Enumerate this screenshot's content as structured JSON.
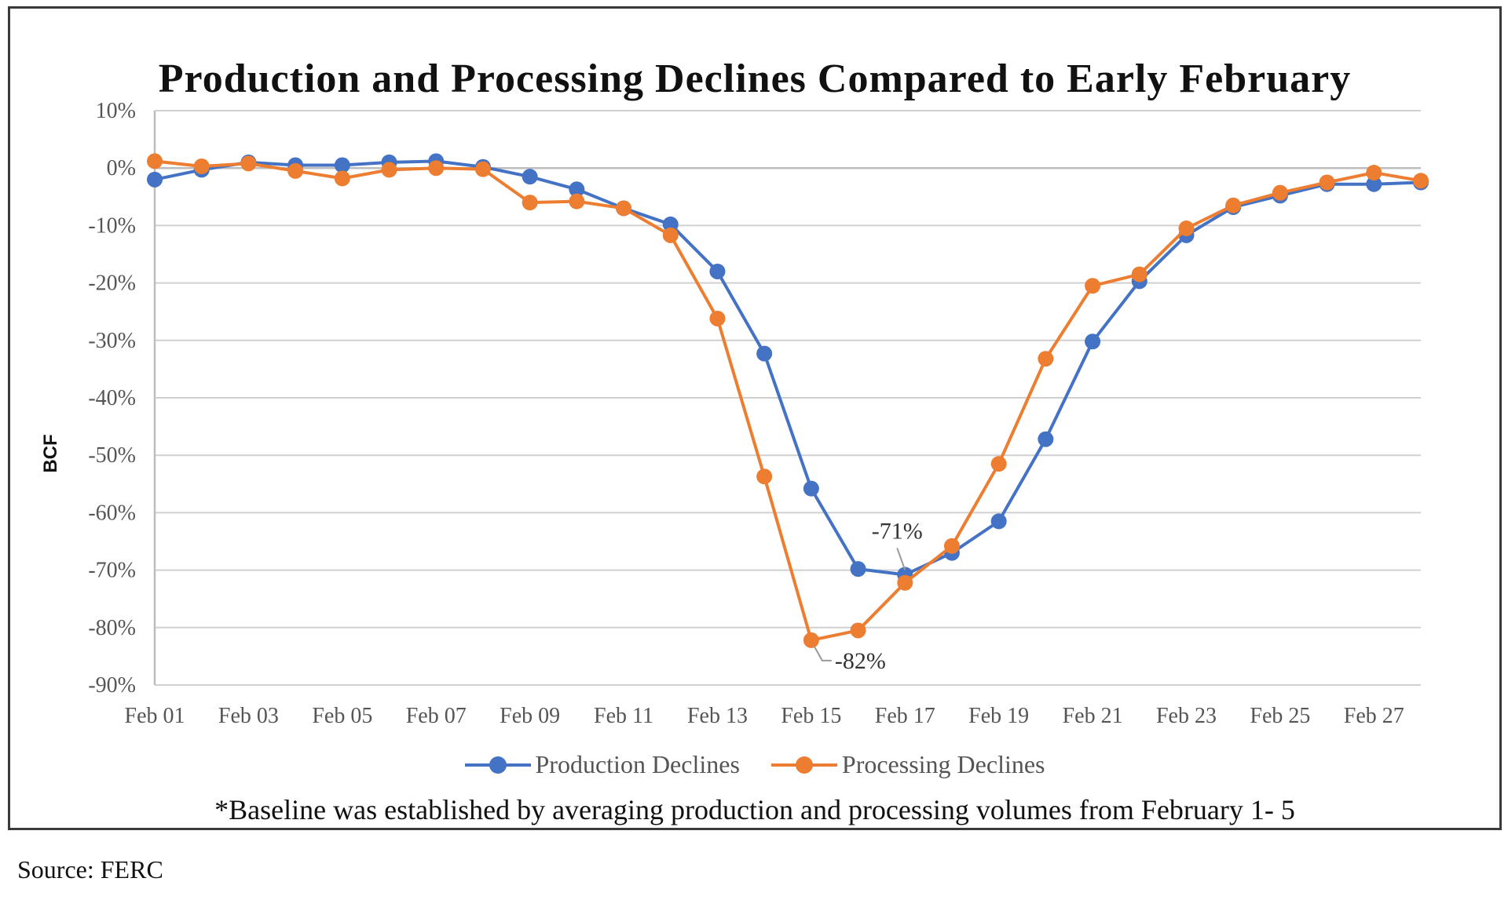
{
  "colors": {
    "production": "#4472c4",
    "processing": "#ed7d31",
    "grid": "#d0d0d0"
  },
  "footnote": "*Baseline was established by averaging production and processing volumes from February 1- 5",
  "source": "Source: FERC",
  "chart_data": {
    "type": "line",
    "title": "Production and Processing Declines Compared to Early February",
    "xlabel": "",
    "ylabel": "BCF",
    "ylim": [
      -90,
      10
    ],
    "y_unit": "%",
    "y_ticks": [
      "10%",
      "0%",
      "-10%",
      "-20%",
      "-30%",
      "-40%",
      "-50%",
      "-60%",
      "-70%",
      "-80%",
      "-90%"
    ],
    "grid": "horizontal",
    "legend_position": "bottom",
    "x": [
      "Feb 01",
      "Feb 02",
      "Feb 03",
      "Feb 04",
      "Feb 05",
      "Feb 06",
      "Feb 07",
      "Feb 08",
      "Feb 09",
      "Feb 10",
      "Feb 11",
      "Feb 12",
      "Feb 13",
      "Feb 14",
      "Feb 15",
      "Feb 16",
      "Feb 17",
      "Feb 18",
      "Feb 19",
      "Feb 20",
      "Feb 21",
      "Feb 22",
      "Feb 23",
      "Feb 24",
      "Feb 25",
      "Feb 26",
      "Feb 27",
      "Feb 28"
    ],
    "x_tick_labels": [
      "Feb 01",
      "Feb 03",
      "Feb 05",
      "Feb 07",
      "Feb 09",
      "Feb 11",
      "Feb 13",
      "Feb 15",
      "Feb 17",
      "Feb 19",
      "Feb 21",
      "Feb 23",
      "Feb 25",
      "Feb 27"
    ],
    "series": [
      {
        "name": "Production Declines",
        "color": "#4472c4",
        "values": [
          -2,
          -0.3,
          1,
          0.5,
          0.5,
          1,
          1.2,
          0.2,
          -1.5,
          -3.7,
          -7,
          -9.8,
          -18,
          -32.3,
          -55.8,
          -69.8,
          -70.8,
          -67,
          -61.5,
          -47.2,
          -30.2,
          -19.7,
          -11.7,
          -6.8,
          -4.8,
          -2.8,
          -2.8,
          -2.5
        ]
      },
      {
        "name": "Processing Declines",
        "color": "#ed7d31",
        "values": [
          1.2,
          0.3,
          0.8,
          -0.5,
          -1.8,
          -0.3,
          0,
          -0.2,
          -6,
          -5.8,
          -7,
          -11.7,
          -26.2,
          -53.7,
          -82.2,
          -80.5,
          -72.2,
          -65.8,
          -51.5,
          -33.2,
          -20.5,
          -18.5,
          -10.5,
          -6.5,
          -4.3,
          -2.5,
          -0.8,
          -2.2
        ]
      }
    ],
    "annotations": [
      {
        "text": "-71%",
        "series": 0,
        "x": "Feb 17"
      },
      {
        "text": "-82%",
        "series": 1,
        "x": "Feb 15"
      }
    ]
  }
}
